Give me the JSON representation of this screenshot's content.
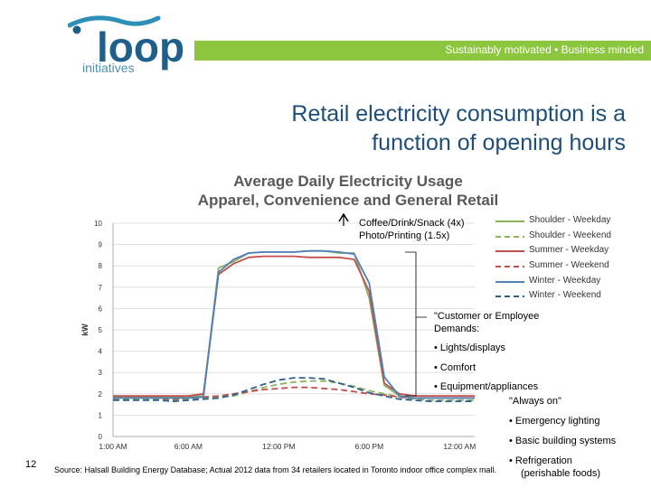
{
  "header": {
    "logo_word": "loop",
    "logo_sub": "initiatives",
    "tagline": "Sustainably motivated • Business minded",
    "brand_colors": {
      "green": "#8cc63f",
      "blue": "#1f5f8b",
      "teal": "#2e8fb8"
    }
  },
  "slide": {
    "title_line1": "Retail electricity consumption is a",
    "title_line2": "function of opening hours",
    "page_number": "12",
    "source": "Source: Halsall Building Energy Database; Actual 2012 data from 34 retailers located in Toronto indoor office complex mall."
  },
  "annotations": {
    "top_line1": "Coffee/Drink/Snack (4x)",
    "top_line2": "Photo/Printing (1.5x)",
    "mid_line1": "\"Customer or Employee",
    "mid_line2": "Demands:",
    "b1": "•  Lights/displays",
    "b2": "•  Comfort",
    "b3": "•  Equipment/appliances",
    "always_on": "\"Always on\"",
    "b4": "•  Emergency lighting",
    "b5": "•  Basic building systems",
    "b6a": "•  Refrigeration",
    "b6b": "(perishable foods)"
  },
  "chart_data": {
    "type": "line",
    "title_line1": "Average Daily Electricity Usage",
    "title_line2": "Apparel, Convenience and General Retail",
    "ylabel": "kW",
    "ylim": [
      0,
      10
    ],
    "yticks": [
      "0",
      "1",
      "2",
      "3",
      "4",
      "5",
      "6",
      "7",
      "8",
      "9",
      "10"
    ],
    "xlim": [
      1,
      25
    ],
    "xticks": [
      {
        "v": 1,
        "label": "1:00 AM"
      },
      {
        "v": 6,
        "label": "6:00 AM"
      },
      {
        "v": 12,
        "label": "12:00 PM"
      },
      {
        "v": 18,
        "label": "6:00 PM"
      },
      {
        "v": 24,
        "label": "12:00 AM"
      }
    ],
    "hours": [
      1,
      2,
      3,
      4,
      5,
      6,
      7,
      8,
      9,
      10,
      11,
      12,
      13,
      14,
      15,
      16,
      17,
      18,
      19,
      20,
      21,
      22,
      23,
      24,
      25
    ],
    "series": [
      {
        "name": "Shoulder - Weekday",
        "color": "#8db35e",
        "dash": false,
        "values": [
          1.85,
          1.85,
          1.85,
          1.85,
          1.85,
          1.85,
          1.9,
          7.9,
          8.2,
          8.6,
          8.65,
          8.65,
          8.65,
          8.7,
          8.7,
          8.6,
          8.6,
          6.5,
          2.4,
          1.9,
          1.8,
          1.8,
          1.8,
          1.8,
          1.8
        ]
      },
      {
        "name": "Shoulder - Weekend",
        "color": "#8db35e",
        "dash": true,
        "values": [
          1.75,
          1.75,
          1.75,
          1.75,
          1.7,
          1.75,
          1.8,
          1.85,
          1.9,
          2.1,
          2.3,
          2.45,
          2.55,
          2.6,
          2.6,
          2.5,
          2.35,
          2.15,
          2.0,
          1.85,
          1.75,
          1.7,
          1.7,
          1.7,
          1.7
        ]
      },
      {
        "name": "Summer - Weekday",
        "color": "#c0504d",
        "dash": false,
        "values": [
          1.9,
          1.9,
          1.9,
          1.9,
          1.9,
          1.9,
          2.0,
          7.6,
          8.1,
          8.4,
          8.45,
          8.45,
          8.45,
          8.4,
          8.4,
          8.4,
          8.3,
          6.8,
          2.5,
          2.0,
          1.9,
          1.9,
          1.9,
          1.9,
          1.9
        ]
      },
      {
        "name": "Summer - Weekend",
        "color": "#c0504d",
        "dash": true,
        "values": [
          1.8,
          1.8,
          1.8,
          1.8,
          1.75,
          1.8,
          1.85,
          1.9,
          2.0,
          2.1,
          2.2,
          2.25,
          2.3,
          2.3,
          2.25,
          2.2,
          2.1,
          2.0,
          1.95,
          1.85,
          1.8,
          1.8,
          1.8,
          1.8,
          1.8
        ]
      },
      {
        "name": "Winter - Weekday",
        "color": "#4f81bd",
        "dash": false,
        "values": [
          1.8,
          1.8,
          1.8,
          1.8,
          1.8,
          1.8,
          1.85,
          7.7,
          8.3,
          8.6,
          8.65,
          8.65,
          8.65,
          8.7,
          8.7,
          8.65,
          8.55,
          7.2,
          2.8,
          1.9,
          1.8,
          1.8,
          1.8,
          1.8,
          1.8
        ]
      },
      {
        "name": "Winter - Weekend",
        "color": "#2f5f8f",
        "dash": true,
        "values": [
          1.7,
          1.7,
          1.7,
          1.7,
          1.65,
          1.7,
          1.75,
          1.8,
          1.95,
          2.2,
          2.45,
          2.65,
          2.75,
          2.75,
          2.7,
          2.5,
          2.3,
          2.05,
          1.9,
          1.75,
          1.7,
          1.65,
          1.65,
          1.65,
          1.65
        ]
      }
    ]
  }
}
